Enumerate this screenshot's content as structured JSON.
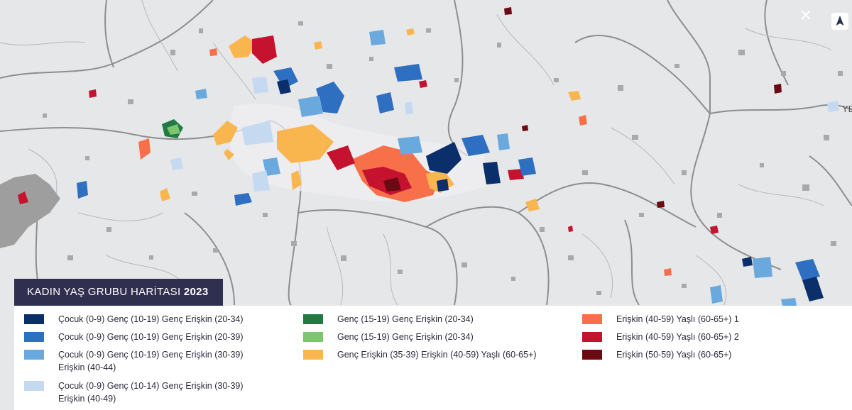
{
  "map": {
    "title": "KADIN YAŞ GRUBU HARİTASI",
    "year": "2023",
    "edge_label": "YE"
  },
  "legend": {
    "items": [
      {
        "label": "Çocuk (0-9) Genç (10-19) Genç Erişkin (20-34)",
        "color": "#0b2f6b"
      },
      {
        "label": "Çocuk (0-9) Genç (10-19) Genç Erişkin (20-39)",
        "color": "#2f6fc1"
      },
      {
        "label": "Çocuk (0-9) Genç (10-19) Genç Erişkin (30-39) Erişkin (40-44)",
        "color": "#6aa9de"
      },
      {
        "label": "Çocuk (0-9) Genç (10-14) Genç Erişkin (30-39) Erişkin (40-49)",
        "color": "#c5daf1"
      },
      {
        "label": "Genç (15-19) Genç Erişkin (20-34)",
        "color": "#1f7a44"
      },
      {
        "label": "Genç (15-19) Genç Erişkin (20-34)",
        "color": "#7cc46e"
      },
      {
        "label": "Genç Erişkin (35-39) Erişkin (40-59) Yaşlı (60-65+)",
        "color": "#f9b64f"
      },
      {
        "label": "Erişkin (40-59) Yaşlı (60-65+) 1",
        "color": "#f8704a"
      },
      {
        "label": "Erişkin (40-59) Yaşlı (60-65+) 2",
        "color": "#c4122f"
      },
      {
        "label": "Erişkin (50-59) Yaşlı (60-65+)",
        "color": "#6b0a12"
      }
    ]
  },
  "colors": {
    "map_background": "#e6e7e9",
    "boundary": "#9a9a9a",
    "no_data": "#a9a9a9",
    "title_bar": "#2f2f4f"
  },
  "icons": [
    "north-arrow-icon",
    "close-icon"
  ]
}
